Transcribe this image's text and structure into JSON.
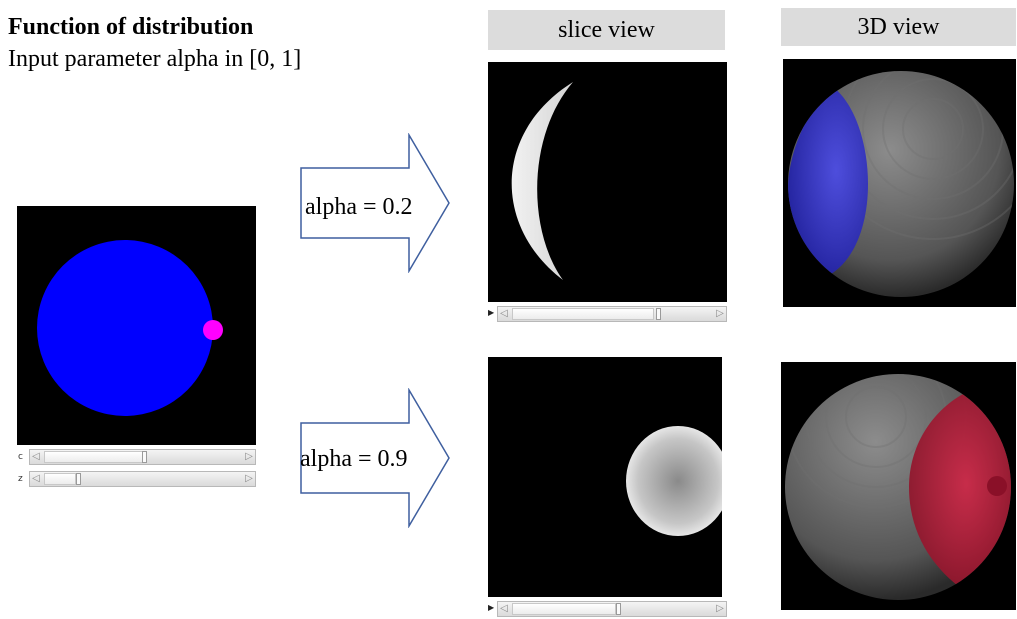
{
  "header": {
    "title": "Function of distribution",
    "subtitle": "Input parameter alpha in [0, 1]"
  },
  "columns": {
    "slice_view_label": "slice view",
    "view3d_label": "3D view"
  },
  "input_viewer": {
    "sliders": [
      {
        "label": "c",
        "value_fraction": 0.52
      },
      {
        "label": "z",
        "value_fraction": 0.2
      }
    ]
  },
  "cases": [
    {
      "arrow_label": "alpha = 0.2",
      "slice_slider_fraction": 0.7,
      "highlight_color": "#3a3ae0"
    },
    {
      "arrow_label": "alpha = 0.9",
      "slice_slider_fraction": 0.5,
      "highlight_color": "#c01838"
    }
  ],
  "colors": {
    "sphere_fill": "#0000ff",
    "marker_fill": "#ff00ff",
    "viewer_bg": "#000000",
    "header_bg": "#dcdcdc"
  }
}
